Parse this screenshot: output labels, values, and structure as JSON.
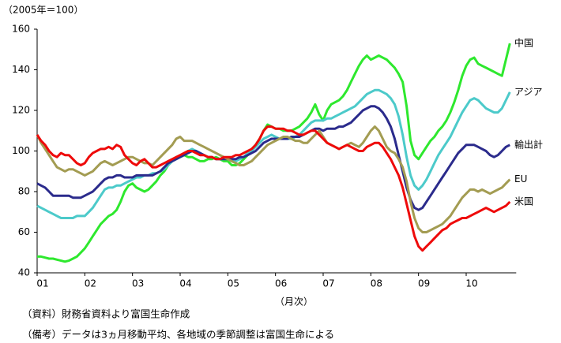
{
  "chart_data": {
    "type": "line",
    "y_unit_label": "（2005年＝100）",
    "x_label": "（月次）",
    "notes": [
      "（資料）財務省資料より富国生命作成",
      "（備考）データは3ヵ月移動平均、各地域の季節調整は富国生命による"
    ],
    "categories": [
      "01",
      null,
      null,
      null,
      null,
      null,
      null,
      null,
      null,
      null,
      null,
      null,
      "02",
      null,
      null,
      null,
      null,
      null,
      null,
      null,
      null,
      null,
      null,
      null,
      "03",
      null,
      null,
      null,
      null,
      null,
      null,
      null,
      null,
      null,
      null,
      null,
      "04",
      null,
      null,
      null,
      null,
      null,
      null,
      null,
      null,
      null,
      null,
      null,
      "05",
      null,
      null,
      null,
      null,
      null,
      null,
      null,
      null,
      null,
      null,
      null,
      "06",
      null,
      null,
      null,
      null,
      null,
      null,
      null,
      null,
      null,
      null,
      null,
      "07",
      null,
      null,
      null,
      null,
      null,
      null,
      null,
      null,
      null,
      null,
      null,
      "08",
      null,
      null,
      null,
      null,
      null,
      null,
      null,
      null,
      null,
      null,
      null,
      "09",
      null,
      null,
      null,
      null,
      null,
      null,
      null,
      null,
      null,
      null,
      null,
      "10",
      null,
      null,
      null,
      null,
      null,
      null,
      null,
      null,
      null,
      null,
      null
    ],
    "ylim": [
      40,
      160
    ],
    "yticks": [
      40,
      60,
      80,
      100,
      120,
      140,
      160
    ],
    "series": [
      {
        "name": "中国",
        "color": "#2ee82e",
        "values": [
          48,
          48,
          47.5,
          47,
          47,
          46.5,
          46,
          45.5,
          46,
          47,
          48,
          50,
          52,
          55,
          58,
          61,
          64,
          66,
          68,
          69,
          71,
          75,
          80,
          83,
          84,
          82,
          81,
          80,
          81,
          83,
          85,
          88,
          90,
          93,
          95,
          97,
          97,
          98,
          97,
          97,
          96,
          95,
          95,
          96,
          96,
          97,
          96,
          95,
          95,
          93,
          93,
          94,
          96,
          98,
          101,
          103,
          106,
          110,
          113,
          112,
          111,
          111,
          110,
          110,
          110,
          111,
          112,
          114,
          116,
          119,
          123,
          118,
          115,
          120,
          123,
          124,
          125,
          127,
          130,
          134,
          138,
          142,
          145,
          147,
          145,
          146,
          147,
          146,
          145,
          143,
          141,
          138,
          134,
          122,
          105,
          98,
          96,
          99,
          102,
          105,
          107,
          110,
          112,
          115,
          119,
          124,
          130,
          137,
          142,
          145,
          146,
          143,
          142,
          141,
          140,
          139,
          138,
          137,
          145,
          153
        ]
      },
      {
        "name": "アジア",
        "color": "#4ccaca",
        "values": [
          73,
          72,
          71,
          70,
          69,
          68,
          67,
          67,
          67,
          67,
          68,
          68,
          68,
          70,
          72,
          75,
          78,
          81,
          82,
          82,
          83,
          83,
          84,
          85,
          86,
          87,
          87,
          88,
          88,
          89,
          89,
          90,
          91,
          93,
          95,
          96,
          97,
          98,
          100,
          101,
          100,
          99,
          98,
          97,
          97,
          96,
          96,
          96,
          96,
          95,
          95,
          96,
          97,
          99,
          100,
          102,
          104,
          106,
          107,
          108,
          107,
          106,
          106,
          106,
          106,
          107,
          108,
          110,
          112,
          114,
          115,
          115,
          115,
          116,
          116,
          117,
          118,
          119,
          120,
          121,
          122,
          124,
          126,
          128,
          129,
          130,
          130,
          129,
          128,
          126,
          123,
          117,
          108,
          97,
          88,
          83,
          81,
          83,
          86,
          90,
          94,
          98,
          101,
          104,
          107,
          111,
          115,
          119,
          122,
          125,
          126,
          125,
          123,
          121,
          120,
          119,
          119,
          121,
          125,
          129
        ]
      },
      {
        "name": "輸出計",
        "color": "#2b2b8c",
        "values": [
          84,
          83,
          82,
          80,
          78,
          78,
          78,
          78,
          78,
          77,
          77,
          77,
          78,
          79,
          80,
          82,
          84,
          86,
          87,
          87,
          88,
          88,
          87,
          87,
          87,
          88,
          88,
          88,
          88,
          88,
          89,
          90,
          92,
          94,
          95,
          96,
          97,
          98,
          99,
          100,
          100,
          99,
          98,
          97,
          97,
          96,
          96,
          96,
          96,
          96,
          96,
          97,
          97,
          98,
          99,
          100,
          102,
          104,
          105,
          106,
          106,
          106,
          106,
          106,
          107,
          107,
          107,
          108,
          109,
          110,
          111,
          111,
          110,
          111,
          111,
          111,
          112,
          112,
          113,
          114,
          116,
          118,
          120,
          121,
          122,
          122,
          121,
          119,
          116,
          112,
          106,
          98,
          90,
          82,
          76,
          72,
          71,
          72,
          75,
          78,
          81,
          84,
          87,
          90,
          93,
          96,
          99,
          101,
          103,
          103,
          103,
          102,
          101,
          100,
          98,
          97,
          98,
          100,
          102,
          103
        ]
      },
      {
        "name": "EU",
        "color": "#a39c52",
        "values": [
          108,
          104,
          101,
          98,
          95,
          92,
          91,
          90,
          91,
          91,
          90,
          89,
          88,
          89,
          90,
          92,
          94,
          95,
          94,
          93,
          94,
          95,
          96,
          97,
          97,
          96,
          95,
          94,
          94,
          93,
          95,
          97,
          99,
          101,
          103,
          106,
          107,
          105,
          105,
          105,
          104,
          103,
          102,
          101,
          100,
          99,
          98,
          97,
          96,
          95,
          94,
          93,
          93,
          94,
          95,
          97,
          99,
          101,
          103,
          104,
          105,
          106,
          107,
          107,
          106,
          105,
          105,
          104,
          104,
          106,
          108,
          110,
          107,
          104,
          103,
          102,
          101,
          102,
          103,
          104,
          103,
          102,
          104,
          107,
          110,
          112,
          110,
          106,
          102,
          100,
          99,
          96,
          92,
          85,
          75,
          67,
          62,
          60,
          60,
          61,
          62,
          63,
          64,
          66,
          68,
          71,
          74,
          77,
          79,
          81,
          81,
          80,
          81,
          80,
          79,
          80,
          81,
          82,
          84,
          86
        ]
      },
      {
        "name": "米国",
        "color": "#ee0a0a",
        "values": [
          108,
          105,
          103,
          100,
          98,
          97,
          99,
          98,
          98,
          96,
          94,
          93,
          94,
          97,
          99,
          100,
          101,
          101,
          102,
          101,
          103,
          102,
          98,
          96,
          94,
          93,
          95,
          96,
          94,
          92,
          92,
          93,
          94,
          95,
          96,
          97,
          98,
          99,
          100,
          100,
          99,
          98,
          98,
          97,
          97,
          96,
          96,
          97,
          97,
          97,
          98,
          98,
          99,
          100,
          101,
          103,
          106,
          110,
          112,
          112,
          111,
          111,
          111,
          110,
          110,
          109,
          108,
          108,
          109,
          110,
          110,
          108,
          106,
          104,
          103,
          102,
          101,
          102,
          103,
          102,
          101,
          100,
          100,
          102,
          103,
          104,
          104,
          102,
          99,
          96,
          92,
          88,
          82,
          74,
          66,
          58,
          53,
          51,
          53,
          55,
          57,
          59,
          61,
          62,
          64,
          65,
          66,
          67,
          67,
          68,
          69,
          70,
          71,
          72,
          71,
          70,
          71,
          72,
          73,
          75
        ]
      }
    ]
  }
}
